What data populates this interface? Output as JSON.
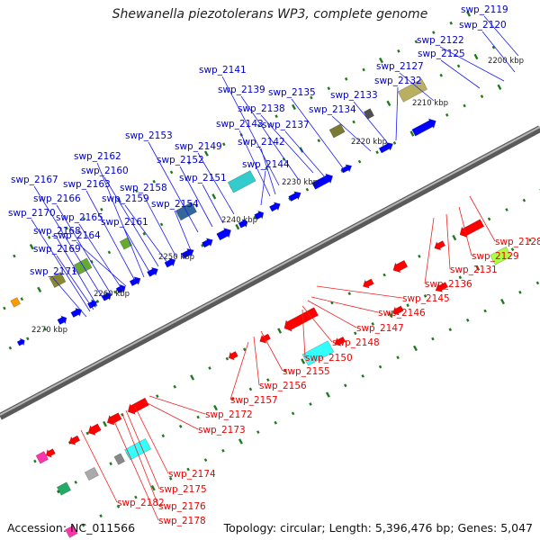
{
  "title": "Shewanella piezotolerans WP3, complete genome",
  "footer": {
    "accession": "Accession: NC_011566",
    "topology": "Topology: circular; Length: 5,396,476 bp; Genes: 5,047"
  },
  "colors": {
    "backbone": "#7f7f7f",
    "forward_label": "#0000cc",
    "reverse_label": "#ee0000",
    "tick": "#1f7a1f"
  },
  "kbp_ticks": [
    "2200 kbp",
    "2210 kbp",
    "2220 kbp",
    "2230 kbp",
    "2240 kbp",
    "2250 kbp",
    "2260 kbp",
    "2270 kbp"
  ],
  "forward_genes": [
    "swp_2119",
    "swp_2120",
    "swp_2122",
    "swp_2125",
    "swp_2127",
    "swp_2132",
    "swp_2133",
    "swp_2134",
    "swp_2135",
    "swp_2137",
    "swp_2138",
    "swp_2139",
    "swp_2141",
    "swp_2142",
    "swp_2143",
    "swp_2144",
    "swp_2149",
    "swp_2151",
    "swp_2152",
    "swp_2153",
    "swp_2154",
    "swp_2158",
    "swp_2159",
    "swp_2160",
    "swp_2161",
    "swp_2162",
    "swp_2163",
    "swp_2164",
    "swp_2165",
    "swp_2166",
    "swp_2167",
    "swp_2168",
    "swp_2169",
    "swp_2170",
    "swp_2171"
  ],
  "reverse_genes": [
    "swp_2128",
    "swp_2129",
    "swp_2131",
    "swp_2136",
    "swp_2145",
    "swp_2146",
    "swp_2147",
    "swp_2148",
    "swp_2150",
    "swp_2155",
    "swp_2156",
    "swp_2157",
    "swp_2172",
    "swp_2173",
    "swp_2174",
    "swp_2175",
    "swp_2176",
    "swp_2178",
    "swp_2182"
  ]
}
